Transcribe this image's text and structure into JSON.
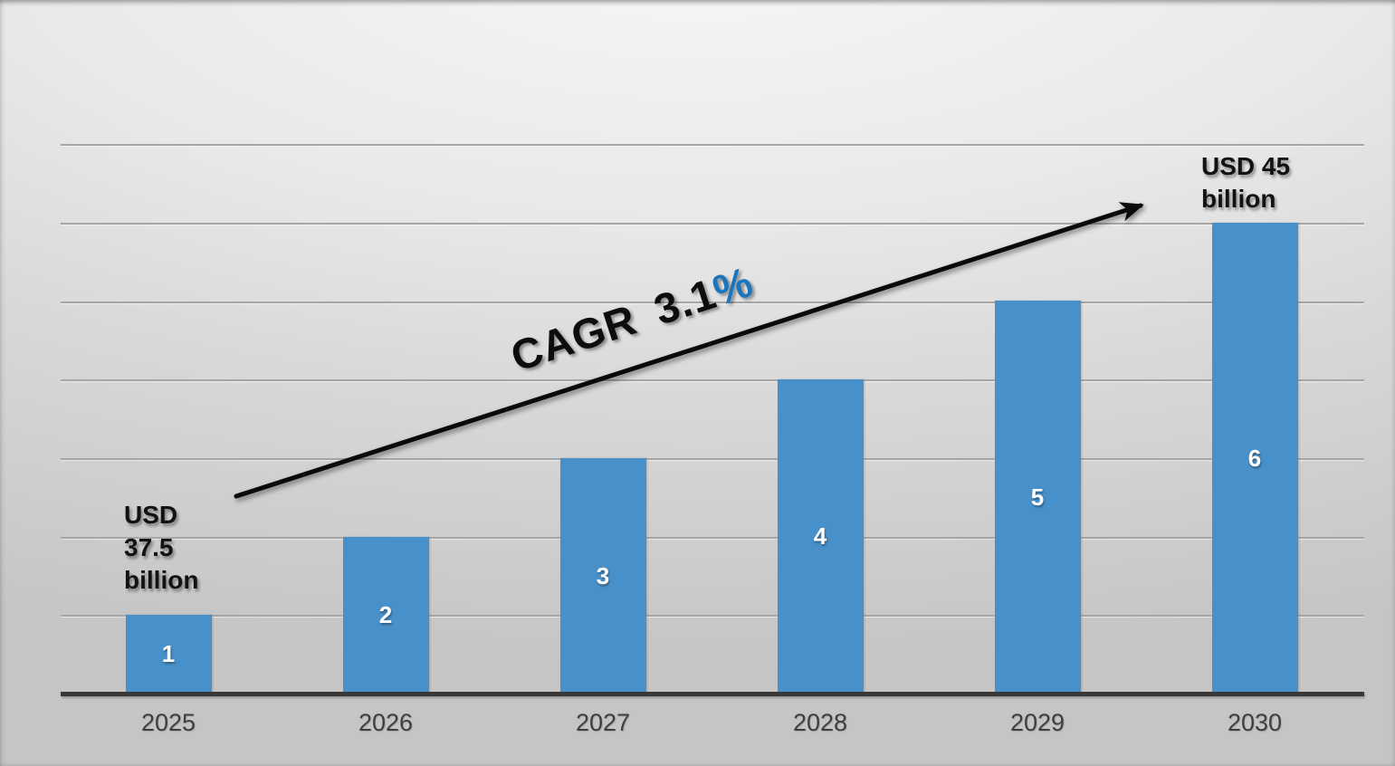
{
  "chart_data": {
    "type": "bar",
    "categories": [
      "2025",
      "2026",
      "2027",
      "2028",
      "2029",
      "2030"
    ],
    "values": [
      1,
      2,
      3,
      4,
      5,
      6
    ],
    "bar_labels": [
      "1",
      "2",
      "3",
      "4",
      "5",
      "6"
    ],
    "title": "",
    "xlabel": "",
    "ylabel": "",
    "ylim": [
      0,
      7
    ],
    "gridline_values": [
      1,
      2,
      3,
      4,
      5,
      6,
      7
    ],
    "grid": "on",
    "legend": "none",
    "annotations": {
      "start_label": "USD 37.5 billion",
      "end_label": "USD 45 billion",
      "cagr_text": "CAGR 3.1",
      "cagr_percent": "%"
    }
  },
  "colors": {
    "bar_fill": "#4890C9",
    "cagr_percent_blue": "#1B75BC",
    "axis_line": "#383838",
    "gridline": "#A6A6A6",
    "bar_value_text": "#FFFFFF",
    "annotation_text": "#121212",
    "x_label_text": "#3F3F3F",
    "arrow": "#0A0A0A"
  }
}
